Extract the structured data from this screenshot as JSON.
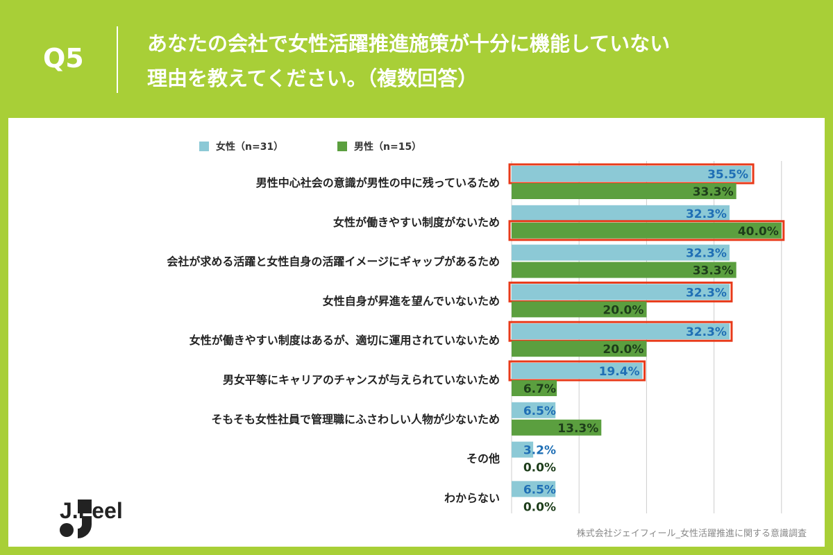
{
  "header": {
    "question_number": "Q5",
    "question_text": "あなたの会社で女性活躍推進施策が十分に機能していない\n理由を教えてください。（複数回答）"
  },
  "brand": {
    "logo_text": "J.Feel"
  },
  "footer": {
    "source": "株式会社ジェイフィール_女性活躍推進に関する意識調査"
  },
  "colors": {
    "background": "#a8cf37",
    "female": "#8cc9d6",
    "male": "#5b9f3f",
    "female_label": "#1f6fb5",
    "male_label": "#1d3d1a",
    "highlight": "#e83a1a"
  },
  "chart_data": {
    "type": "bar",
    "orientation": "horizontal",
    "legend": {
      "placement": "top-left"
    },
    "categories": [
      "男性中心社会の意識が男性の中に残っているため",
      "女性が働きやすい制度がないため",
      "会社が求める活躍と女性自身の活躍イメージにギャップがあるため",
      "女性自身が昇進を望んでいないため",
      "女性が働きやすい制度はあるが、適切に運用されていないため",
      "男女平等にキャリアのチャンスが与えられていないため",
      "そもそも女性社員で管理職にふさわしい人物が少ないため",
      "その他",
      "わからない"
    ],
    "series": [
      {
        "name": "女性（n=31）",
        "values": [
          35.5,
          32.3,
          32.3,
          32.3,
          32.3,
          19.4,
          6.5,
          3.2,
          6.5
        ],
        "labels": [
          "35.5%",
          "32.3%",
          "32.3%",
          "32.3%",
          "32.3%",
          "19.4%",
          "6.5%",
          "3.2%",
          "6.5%"
        ],
        "highlighted": [
          true,
          false,
          false,
          true,
          true,
          true,
          false,
          false,
          false
        ]
      },
      {
        "name": "男性（n=15）",
        "values": [
          33.3,
          40.0,
          33.3,
          20.0,
          20.0,
          6.7,
          13.3,
          0.0,
          0.0
        ],
        "labels": [
          "33.3%",
          "40.0%",
          "33.3%",
          "20.0%",
          "20.0%",
          "6.7%",
          "13.3%",
          "0.0%",
          "0.0%"
        ],
        "highlighted": [
          false,
          true,
          false,
          false,
          false,
          false,
          false,
          false,
          false
        ]
      }
    ],
    "xlim": [
      0,
      40
    ],
    "grid": true
  }
}
